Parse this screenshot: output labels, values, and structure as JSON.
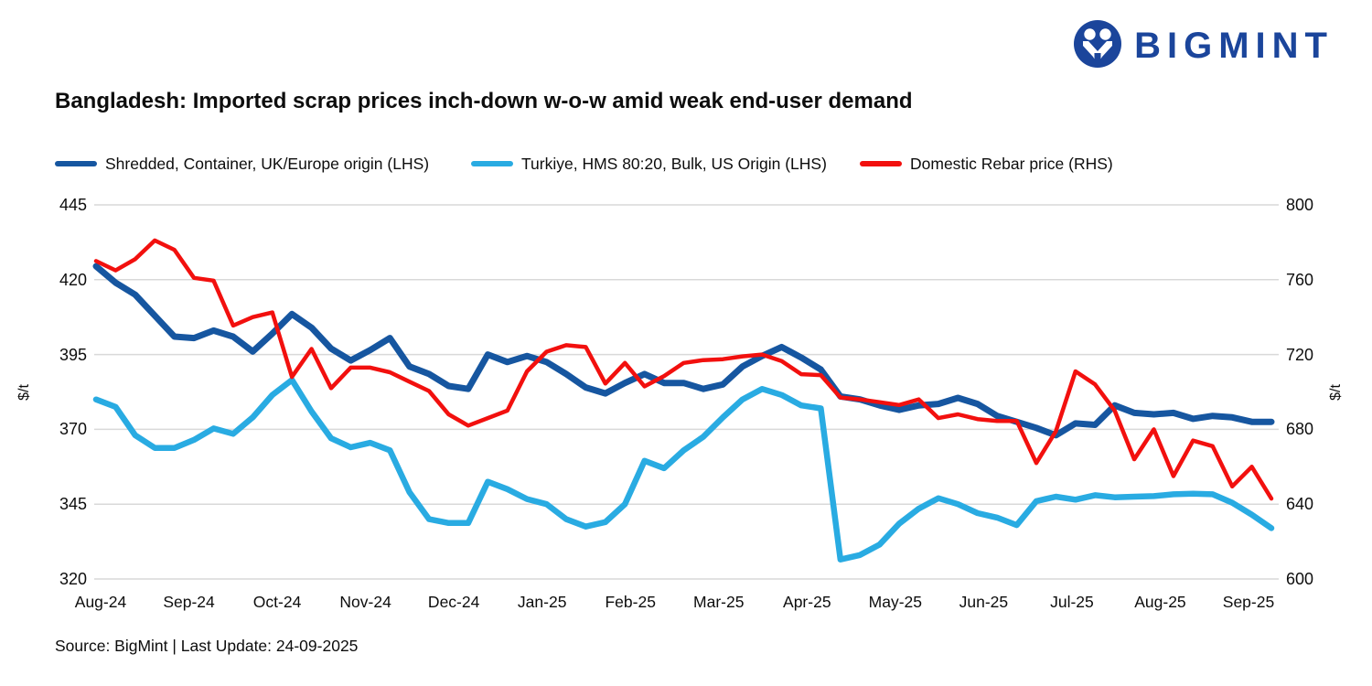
{
  "logo": {
    "text": "BIGMINT",
    "icon": "bigmint-emblem",
    "color": "#1b459b"
  },
  "title": "Bangladesh: Imported scrap prices inch-down w-o-w amid weak end-user demand",
  "footer": "Source: BigMint | Last Update: 24-09-2025",
  "legend": [
    {
      "label": "Shredded, Container, UK/Europe origin (LHS)",
      "color": "#1656a0"
    },
    {
      "label": "Turkiye, HMS 80:20, Bulk, US Origin (LHS)",
      "color": "#29abe2"
    },
    {
      "label": "Domestic Rebar price (RHS)",
      "color": "#f2100e"
    }
  ],
  "chart_data": {
    "type": "line",
    "x_labels": [
      "Aug-24",
      "Sep-24",
      "Oct-24",
      "Nov-24",
      "Dec-24",
      "Jan-25",
      "Feb-25",
      "Mar-25",
      "Apr-25",
      "May-25",
      "Jun-25",
      "Jul-25",
      "Aug-25",
      "Sep-25"
    ],
    "left_axis": {
      "title": "$/t",
      "ticks": [
        445,
        420,
        395,
        370,
        345,
        320
      ],
      "range": [
        320,
        445
      ]
    },
    "right_axis": {
      "title": "$/t",
      "ticks": [
        800,
        760,
        720,
        680,
        640,
        600
      ],
      "range": [
        600,
        800
      ]
    },
    "grid": true,
    "grid_color": "#d9d9d9",
    "legend_position": "top",
    "frequency": "weekly",
    "series": [
      {
        "name": "Shredded, Container, UK/Europe origin (LHS)",
        "axis": "left",
        "color": "#1656a0",
        "width": 7,
        "values": [
          424.5,
          419,
          415,
          408,
          401,
          400.5,
          403,
          401,
          396,
          402,
          408.5,
          404,
          397,
          393,
          396.5,
          400.5,
          391,
          388.5,
          384.5,
          383.5,
          395,
          392.5,
          394.5,
          392.5,
          388.5,
          384,
          382,
          385.5,
          388.5,
          385.5,
          385.5,
          383.5,
          385,
          391,
          394.5,
          397.5,
          394,
          390,
          381,
          380,
          378,
          376.5,
          378,
          378.5,
          380.5,
          378.5,
          374.5,
          372.5,
          370.5,
          368,
          372,
          371.5,
          378,
          375.5,
          375,
          375.5,
          373.5,
          374.5,
          374,
          372.5,
          372.5
        ]
      },
      {
        "name": "Turkiye, HMS 80:20, Bulk, US Origin (LHS)",
        "axis": "left",
        "color": "#29abe2",
        "width": 6.5,
        "values": [
          380,
          377.5,
          368,
          363.8,
          363.8,
          366.5,
          370.3,
          368.5,
          374,
          381.5,
          386.5,
          376,
          367,
          364,
          365.5,
          363,
          349,
          340,
          338.7,
          338.7,
          352.5,
          350,
          346.7,
          345,
          340,
          337.5,
          339,
          345,
          359.5,
          357,
          363,
          367.5,
          374,
          380,
          383.5,
          381.5,
          378,
          377,
          326.5,
          328,
          331.5,
          338.5,
          343.5,
          347,
          345,
          342,
          340.5,
          338,
          346,
          347.5,
          346.5,
          348,
          347.3,
          347.5,
          347.7,
          348.3,
          348.5,
          348.3,
          345.5,
          341.5,
          337
        ]
      },
      {
        "name": "Domestic Rebar price (RHS)",
        "axis": "right",
        "color": "#f2100e",
        "width": 4.5,
        "values": [
          770,
          765,
          771,
          781,
          776,
          761,
          759.5,
          735.5,
          740,
          742.5,
          708,
          723,
          702,
          713,
          713,
          710.5,
          705.5,
          700.5,
          688,
          682,
          686,
          690,
          711,
          721.5,
          725,
          724,
          704.5,
          715.5,
          703,
          708.5,
          715.5,
          717,
          717.5,
          719,
          720,
          716.5,
          709.5,
          709,
          697,
          696,
          694.5,
          693,
          696,
          686,
          688,
          685.5,
          684.5,
          684.5,
          662,
          679,
          711,
          704,
          690,
          664,
          680,
          655,
          674,
          671,
          649.5,
          660,
          643
        ]
      }
    ]
  }
}
